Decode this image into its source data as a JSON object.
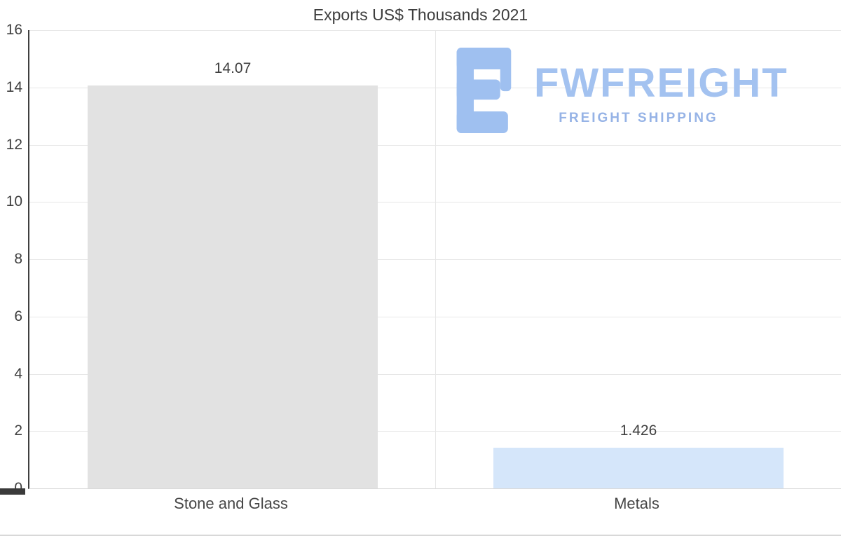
{
  "chart_data": {
    "type": "bar",
    "title": "Exports US$ Thousands 2021",
    "categories": [
      "Stone and Glass",
      "Metals"
    ],
    "values": [
      14.07,
      1.426
    ],
    "value_labels": [
      "14.07",
      "1.426"
    ],
    "bar_colors": [
      "#e2e2e2",
      "#d5e6fa"
    ],
    "ylim": [
      0,
      16
    ],
    "y_tick_step": 2,
    "y_ticks": [
      0,
      2,
      4,
      6,
      8,
      10,
      12,
      14,
      16
    ],
    "grid": true,
    "legend": "none",
    "xlabel": "",
    "ylabel": ""
  },
  "logo": {
    "brand": "FWFREIGHT",
    "tagline": "FREIGHT SHIPPING",
    "brand_color": "#a3c2f0",
    "tagline_color": "#96b3e6",
    "icon_color": "#9fc0f0"
  },
  "style": {
    "axis_color": "#3f3f3f",
    "grid_color": "#e7e7e7",
    "text_color": "#3f3f3f",
    "background": "#ffffff"
  }
}
